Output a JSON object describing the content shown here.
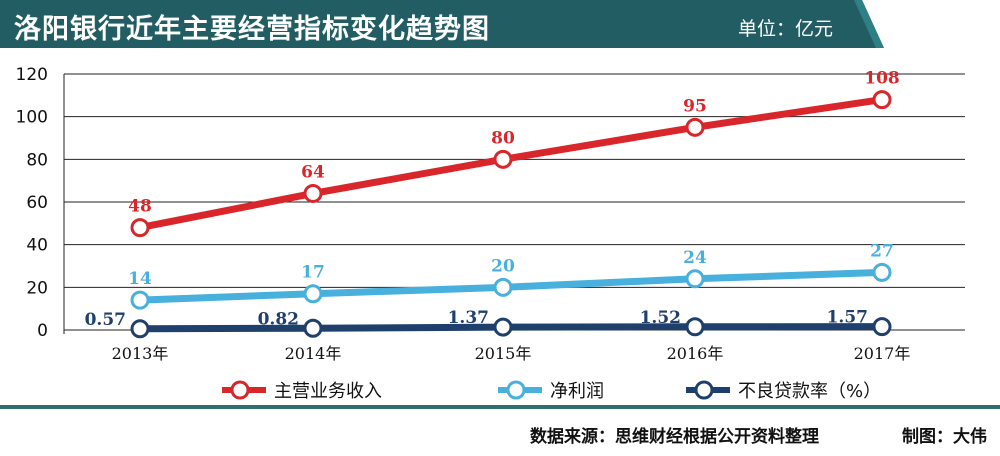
{
  "header": {
    "title": "洛阳银行近年主要经营指标变化趋势图",
    "unit": "单位：亿元",
    "bg_color": "#215d62",
    "accent_color": "#2f7f86"
  },
  "chart_data": {
    "type": "line",
    "categories": [
      "2013年",
      "2014年",
      "2015年",
      "2016年",
      "2017年"
    ],
    "ylim": [
      0,
      120
    ],
    "yticks": [
      0,
      20,
      40,
      60,
      80,
      100,
      120
    ],
    "grid": "horizontal",
    "legend_position": "bottom",
    "series": [
      {
        "name": "主营业务收入",
        "values": [
          48,
          64,
          80,
          95,
          108
        ],
        "labels": [
          "48",
          "64",
          "80",
          "95",
          "108"
        ],
        "color": "#d9262b"
      },
      {
        "name": "净利润",
        "values": [
          14,
          17,
          20,
          24,
          27
        ],
        "labels": [
          "14",
          "17",
          "20",
          "24",
          "27"
        ],
        "color": "#48b0dc"
      },
      {
        "name": "不良贷款率（%）",
        "values": [
          0.57,
          0.82,
          1.37,
          1.52,
          1.57
        ],
        "labels": [
          "0.57",
          "0.82",
          "1.37",
          "1.52",
          "1.57"
        ],
        "color": "#1f3f6d"
      }
    ]
  },
  "footer": {
    "source": "数据来源：思维财经根据公开资料整理",
    "credit": "制图：大伟"
  }
}
